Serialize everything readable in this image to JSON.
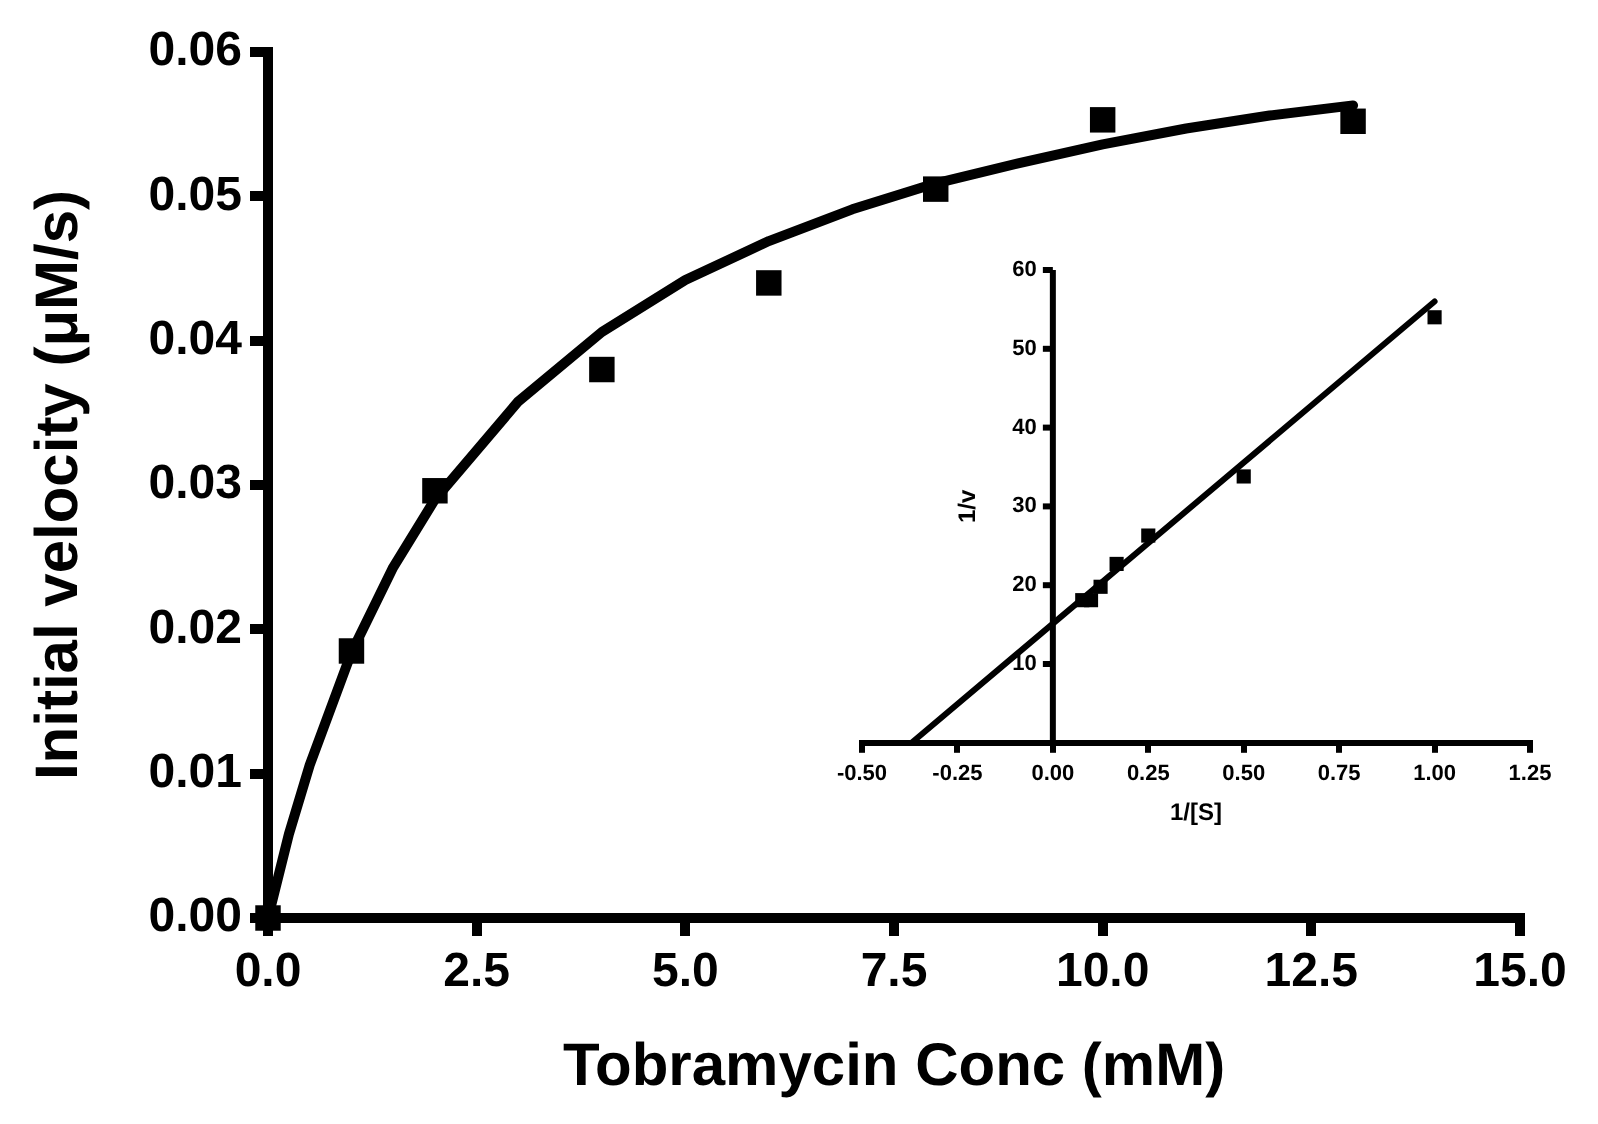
{
  "chart_data": [
    {
      "type": "scatter",
      "xlabel": "Tobramycin Conc (mM)",
      "ylabel": "Initial velocity (μM/s)",
      "xlim": [
        0,
        15
      ],
      "ylim": [
        0,
        0.06
      ],
      "xticks": [
        {
          "value": 0,
          "label": "0.0"
        },
        {
          "value": 2.5,
          "label": "2.5"
        },
        {
          "value": 5,
          "label": "5.0"
        },
        {
          "value": 7.5,
          "label": "7.5"
        },
        {
          "value": 10,
          "label": "10.0"
        },
        {
          "value": 12.5,
          "label": "12.5"
        },
        {
          "value": 15,
          "label": "15.0"
        }
      ],
      "yticks": [
        {
          "value": 0,
          "label": "0.00"
        },
        {
          "value": 0.01,
          "label": "0.01"
        },
        {
          "value": 0.02,
          "label": "0.02"
        },
        {
          "value": 0.03,
          "label": "0.03"
        },
        {
          "value": 0.04,
          "label": "0.04"
        },
        {
          "value": 0.05,
          "label": "0.05"
        },
        {
          "value": 0.06,
          "label": "0.06"
        }
      ],
      "grid": false,
      "legend": false,
      "marker": "square",
      "series": [
        {
          "type": "scatter",
          "color": "#000000",
          "x": [
            0,
            1,
            2,
            4,
            6,
            8,
            10,
            13
          ],
          "values": [
            0,
            0.0185,
            0.0296,
            0.038,
            0.044,
            0.0505,
            0.0553,
            0.0552
          ]
        },
        {
          "type": "line",
          "color": "#000000",
          "marker": "none",
          "x": [
            0,
            0.25,
            0.5,
            1,
            1.5,
            2,
            3,
            4,
            5,
            6,
            7,
            8,
            9,
            10,
            11,
            12,
            13
          ],
          "values": [
            0,
            0.0058,
            0.0106,
            0.0184,
            0.0243,
            0.029,
            0.0358,
            0.0406,
            0.0442,
            0.0469,
            0.0491,
            0.0509,
            0.0523,
            0.0536,
            0.0547,
            0.0556,
            0.0563
          ]
        }
      ]
    },
    {
      "type": "scatter",
      "xlabel": "1/[S]",
      "ylabel": "1/v",
      "xlim": [
        -0.5,
        1.25
      ],
      "ylim": [
        0,
        60
      ],
      "xticks": [
        {
          "value": -0.5,
          "label": "-0.50"
        },
        {
          "value": -0.25,
          "label": "-0.25"
        },
        {
          "value": 0,
          "label": "0.00"
        },
        {
          "value": 0.25,
          "label": "0.25"
        },
        {
          "value": 0.5,
          "label": "0.50"
        },
        {
          "value": 0.75,
          "label": "0.75"
        },
        {
          "value": 1,
          "label": "1.00"
        },
        {
          "value": 1.25,
          "label": "1.25"
        }
      ],
      "yticks": [
        10,
        20,
        30,
        40,
        50,
        60
      ],
      "grid": false,
      "legend": false,
      "marker": "square",
      "series": [
        {
          "type": "scatter",
          "color": "#000000",
          "x": [
            0.077,
            0.1,
            0.125,
            0.167,
            0.25,
            0.5,
            1
          ],
          "values": [
            18.1,
            18.1,
            19.8,
            22.7,
            26.3,
            33.8,
            54
          ]
        },
        {
          "type": "line",
          "color": "#000000",
          "marker": "none",
          "x": [
            -0.37,
            1
          ],
          "values": [
            0,
            56
          ]
        }
      ]
    }
  ]
}
